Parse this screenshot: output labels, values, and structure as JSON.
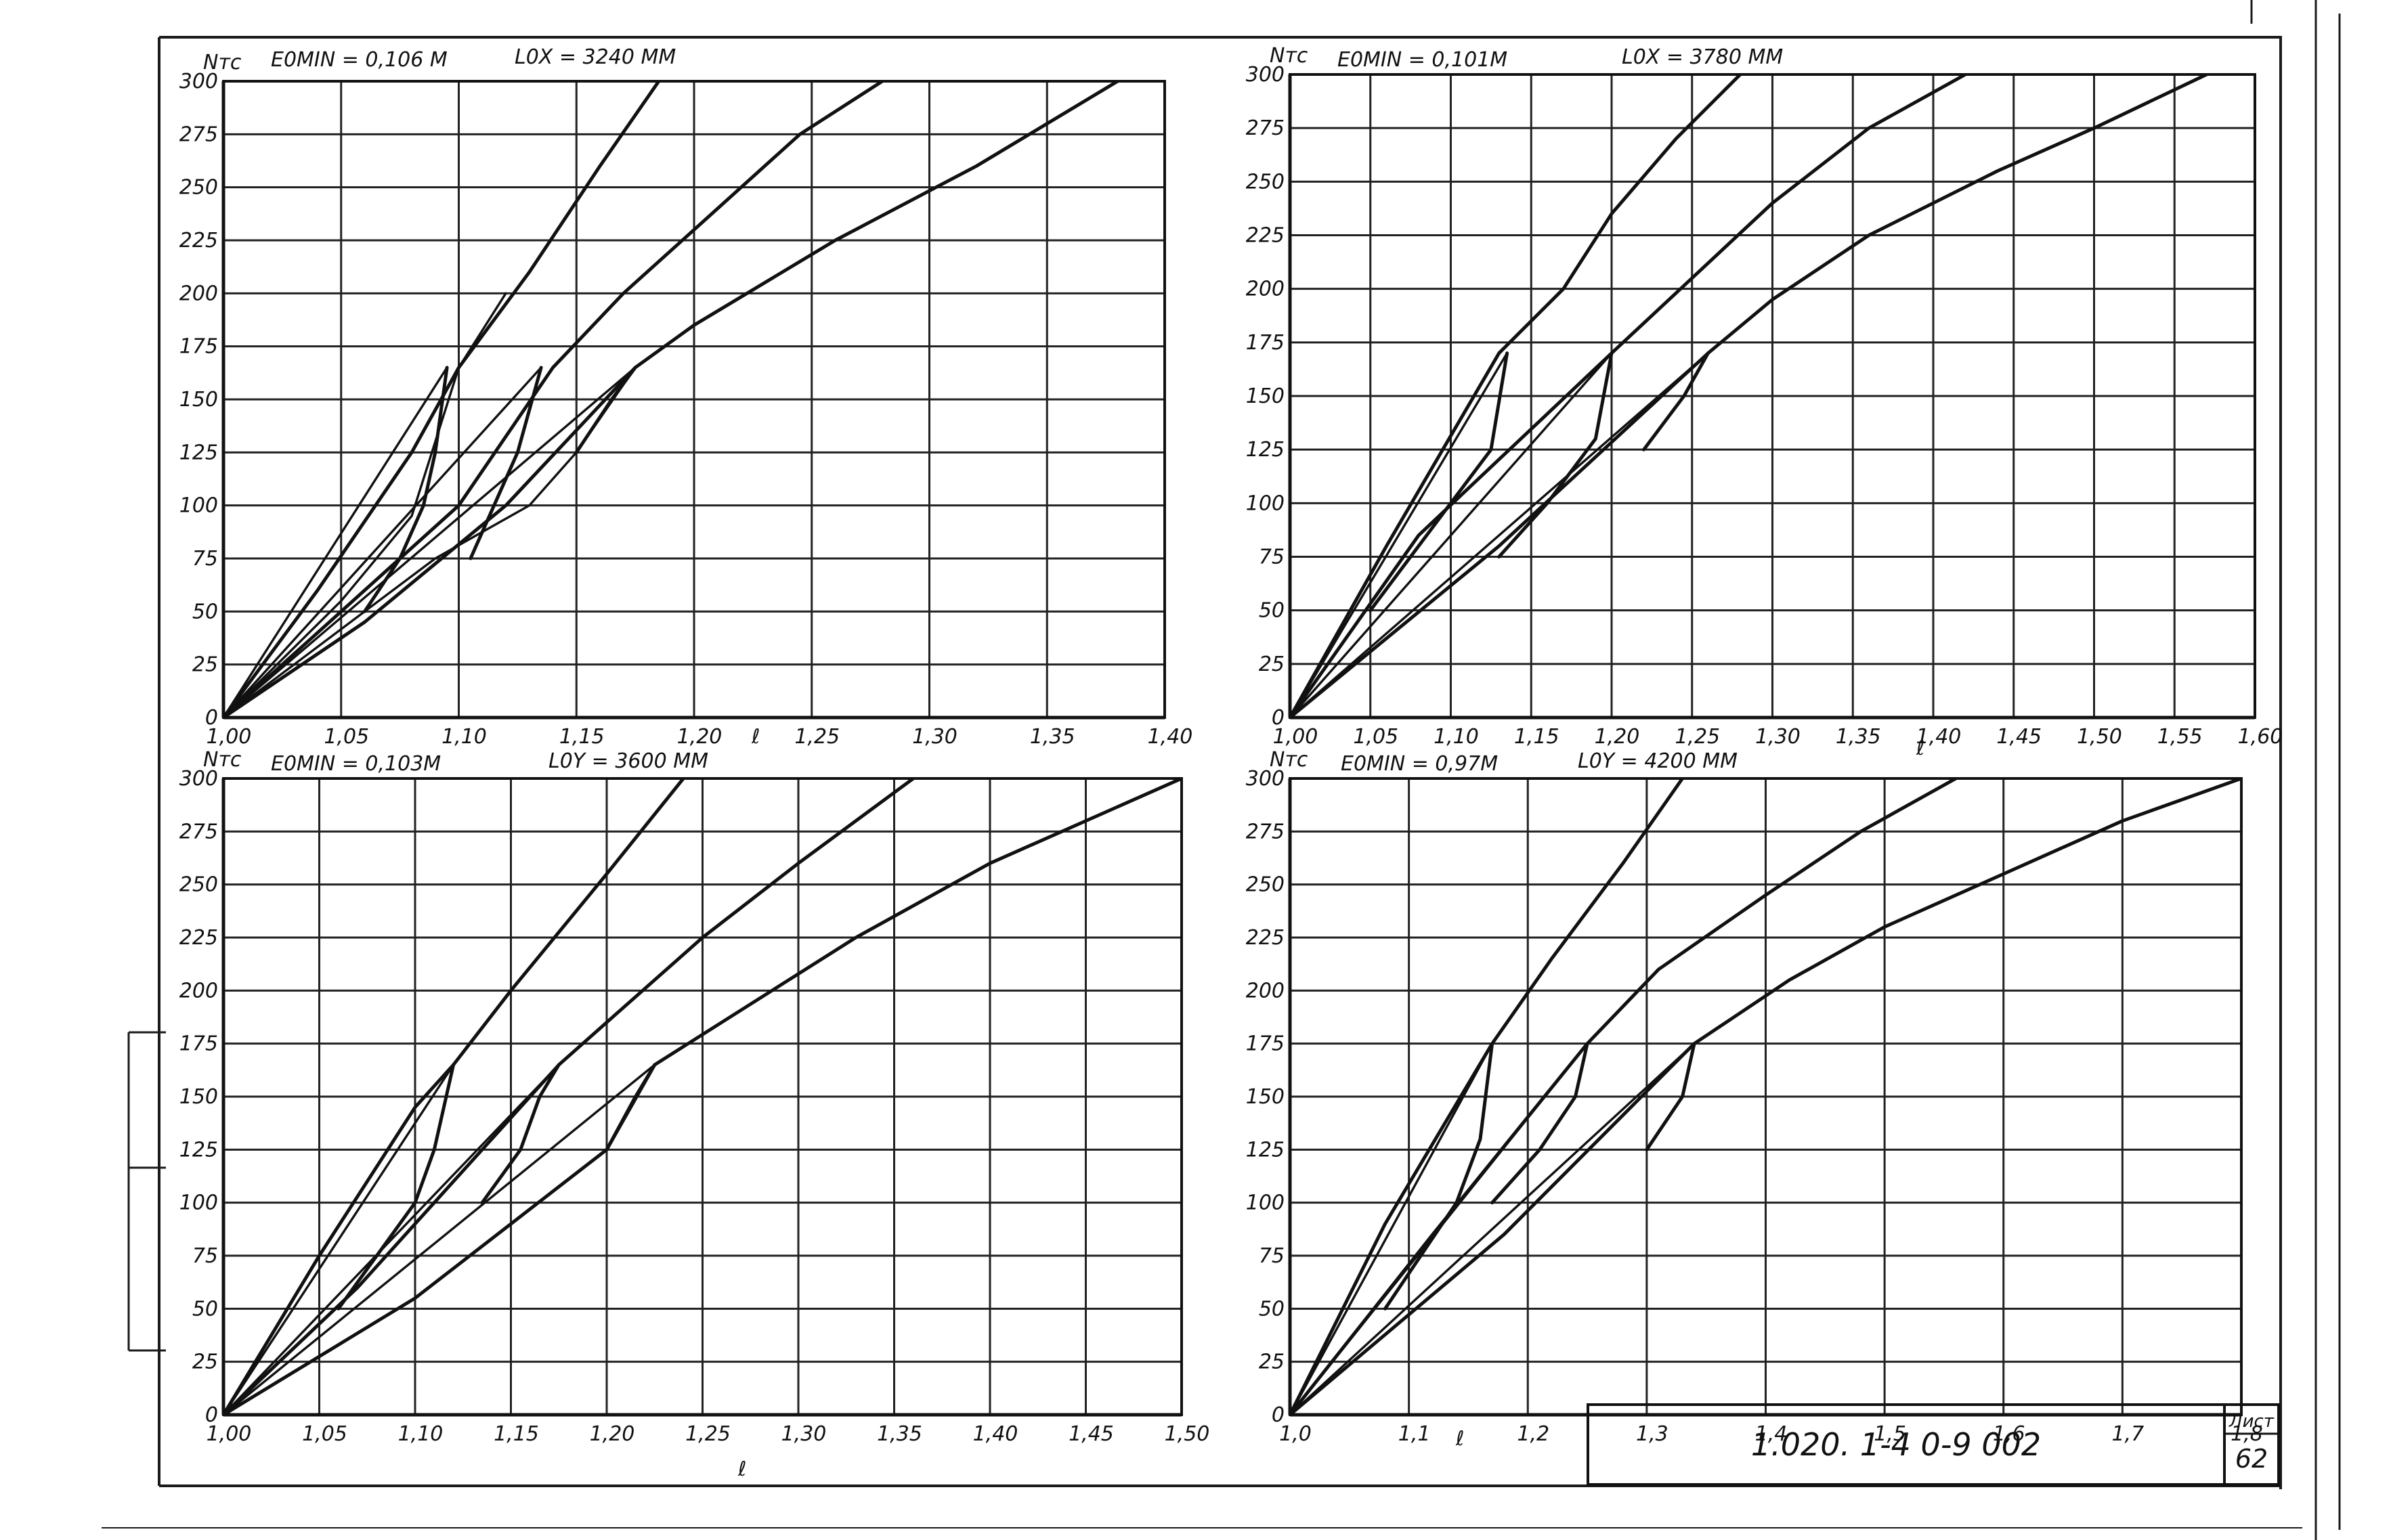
{
  "colors": {
    "ink": "#111111",
    "paper": "#ffffff"
  },
  "stamp": {
    "code": "1.020. 1-4   0-9  002",
    "sheet_label": "Лист",
    "sheet_number": "62"
  },
  "chart_data": [
    {
      "type": "line",
      "y_axis_label": "Nтс",
      "x_axis_label": "ℓ",
      "emin_label": "E0MIN = 0,106 М",
      "length_label": "L0X = 3240 ММ",
      "xlim": [
        1.0,
        1.4
      ],
      "ylim": [
        0,
        300
      ],
      "x_ticks": [
        1.0,
        1.05,
        1.1,
        1.15,
        1.2,
        1.25,
        1.3,
        1.35,
        1.4
      ],
      "x_tick_labels": [
        "1,00",
        "1,05",
        "1,10",
        "1,15",
        "1,20",
        "1,25",
        "1,30",
        "1,35",
        "1,40"
      ],
      "y_ticks": [
        0,
        25,
        50,
        75,
        100,
        125,
        150,
        175,
        200,
        225,
        250,
        275,
        300
      ],
      "y_tick_labels": [
        "0",
        "25",
        "50",
        "75",
        "100",
        "125",
        "150",
        "175",
        "200",
        "225",
        "250",
        "275",
        "300"
      ],
      "grid": true,
      "series": [
        {
          "x": [
            1.0,
            1.04,
            1.08,
            1.1,
            1.13,
            1.16,
            1.185
          ],
          "y": [
            0,
            60,
            125,
            165,
            210,
            260,
            300
          ]
        },
        {
          "x": [
            1.0,
            1.05,
            1.1,
            1.14,
            1.17,
            1.21,
            1.245,
            1.28
          ],
          "y": [
            0,
            50,
            100,
            165,
            200,
            240,
            275,
            300
          ]
        },
        {
          "x": [
            1.0,
            1.06,
            1.12,
            1.175,
            1.2,
            1.26,
            1.32,
            1.38
          ],
          "y": [
            0,
            45,
            100,
            165,
            185,
            225,
            260,
            300
          ]
        },
        {
          "x": [
            1.0,
            1.03,
            1.06,
            1.09,
            1.13,
            1.15,
            1.175
          ],
          "y": [
            0,
            25,
            50,
            75,
            100,
            125,
            165
          ]
        },
        {
          "x": [
            1.0,
            1.05,
            1.08,
            1.1,
            1.12
          ],
          "y": [
            0,
            55,
            95,
            165,
            200
          ]
        }
      ],
      "fan_x": [
        1.095,
        1.09,
        1.085,
        1.075,
        1.06
      ],
      "fan_y": [
        165,
        125,
        100,
        75,
        50
      ],
      "fan2_x": [
        1.135,
        1.125,
        1.115,
        1.105
      ],
      "fan2_y": [
        165,
        125,
        100,
        75
      ],
      "fan3_x": [
        1.175,
        1.165,
        1.15
      ],
      "fan3_y": [
        165,
        150,
        125
      ]
    },
    {
      "type": "line",
      "y_axis_label": "Nтс",
      "x_axis_label": "ℓ",
      "emin_label": "E0MIN = 0,101М",
      "length_label": "L0X = 3780 ММ",
      "xlim": [
        1.0,
        1.6
      ],
      "ylim": [
        0,
        300
      ],
      "x_ticks": [
        1.0,
        1.05,
        1.1,
        1.15,
        1.2,
        1.25,
        1.3,
        1.35,
        1.4,
        1.45,
        1.5,
        1.55,
        1.6
      ],
      "x_tick_labels": [
        "1,00",
        "1,05",
        "1,10",
        "1,15",
        "1,20",
        "1,25",
        "1,30",
        "1,35",
        "1,40",
        "1,45",
        "1,50",
        "1,55",
        "1,60"
      ],
      "y_ticks": [
        0,
        25,
        50,
        75,
        100,
        125,
        150,
        175,
        200,
        225,
        250,
        275,
        300
      ],
      "y_tick_labels": [
        "0",
        "25",
        "50",
        "75",
        "100",
        "125",
        "150",
        "175",
        "200",
        "225",
        "250",
        "275",
        "300"
      ],
      "grid": true,
      "series": [
        {
          "x": [
            1.0,
            1.06,
            1.13,
            1.17,
            1.2,
            1.24,
            1.28
          ],
          "y": [
            0,
            80,
            170,
            200,
            235,
            270,
            300
          ]
        },
        {
          "x": [
            1.0,
            1.08,
            1.2,
            1.25,
            1.3,
            1.36,
            1.42
          ],
          "y": [
            0,
            85,
            170,
            205,
            240,
            275,
            300
          ]
        },
        {
          "x": [
            1.0,
            1.13,
            1.26,
            1.3,
            1.36,
            1.44,
            1.5,
            1.57
          ],
          "y": [
            0,
            80,
            170,
            195,
            225,
            255,
            275,
            300
          ]
        }
      ],
      "fan_x": [
        1.135,
        1.125,
        1.1,
        1.075,
        1.05
      ],
      "fan_y": [
        170,
        125,
        100,
        75,
        50
      ],
      "fan2_x": [
        1.2,
        1.19,
        1.16,
        1.13
      ],
      "fan2_y": [
        170,
        130,
        100,
        75
      ],
      "fan3_x": [
        1.26,
        1.245,
        1.22
      ],
      "fan3_y": [
        170,
        150,
        125
      ]
    },
    {
      "type": "line",
      "y_axis_label": "Nтс",
      "x_axis_label": "ℓ",
      "emin_label": "E0MIN = 0,103М",
      "length_label": "L0Y = 3600 ММ",
      "xlim": [
        1.0,
        1.5
      ],
      "ylim": [
        0,
        300
      ],
      "x_ticks": [
        1.0,
        1.05,
        1.1,
        1.15,
        1.2,
        1.25,
        1.3,
        1.35,
        1.4,
        1.45,
        1.5
      ],
      "x_tick_labels": [
        "1,00",
        "1,05",
        "1,10",
        "1,15",
        "1,20",
        "1,25",
        "1,30",
        "1,35",
        "1,40",
        "1,45",
        "1,50"
      ],
      "y_ticks": [
        0,
        25,
        50,
        75,
        100,
        125,
        150,
        175,
        200,
        225,
        250,
        275,
        300
      ],
      "y_tick_labels": [
        "0",
        "25",
        "50",
        "75",
        "100",
        "125",
        "150",
        "175",
        "200",
        "225",
        "250",
        "275",
        "300"
      ],
      "grid": true,
      "series": [
        {
          "x": [
            1.0,
            1.05,
            1.1,
            1.12,
            1.15,
            1.2,
            1.24
          ],
          "y": [
            0,
            75,
            145,
            165,
            200,
            255,
            300
          ]
        },
        {
          "x": [
            1.0,
            1.07,
            1.13,
            1.175,
            1.2,
            1.25,
            1.3,
            1.36
          ],
          "y": [
            0,
            60,
            120,
            165,
            185,
            225,
            260,
            300
          ]
        },
        {
          "x": [
            1.0,
            1.1,
            1.2,
            1.225,
            1.26,
            1.33,
            1.4,
            1.5
          ],
          "y": [
            0,
            55,
            125,
            165,
            185,
            225,
            260,
            300
          ]
        }
      ],
      "fan_x": [
        1.12,
        1.11,
        1.1,
        1.08,
        1.06
      ],
      "fan_y": [
        165,
        125,
        100,
        75,
        50
      ],
      "fan2_x": [
        1.175,
        1.165,
        1.155,
        1.135
      ],
      "fan2_y": [
        165,
        150,
        125,
        100
      ],
      "fan3_x": [
        1.225,
        1.215,
        1.2
      ],
      "fan3_y": [
        165,
        150,
        125
      ]
    },
    {
      "type": "line",
      "y_axis_label": "Nтс",
      "x_axis_label": "ℓ",
      "emin_label": "E0MIN = 0,97М",
      "length_label": "L0Y = 4200 ММ",
      "xlim": [
        1.0,
        1.8
      ],
      "ylim": [
        0,
        300
      ],
      "x_ticks": [
        1.0,
        1.1,
        1.2,
        1.3,
        1.4,
        1.5,
        1.6,
        1.7,
        1.8
      ],
      "x_tick_labels": [
        "1,0",
        "1,1",
        "1,2",
        "1,3",
        "1,4",
        "1,5",
        "1,6",
        "1,7",
        "1,8"
      ],
      "y_ticks": [
        0,
        25,
        50,
        75,
        100,
        125,
        150,
        175,
        200,
        225,
        250,
        275,
        300
      ],
      "y_tick_labels": [
        "0",
        "25",
        "50",
        "75",
        "100",
        "125",
        "150",
        "175",
        "200",
        "225",
        "250",
        "275",
        "300"
      ],
      "grid": true,
      "series": [
        {
          "x": [
            1.0,
            1.08,
            1.17,
            1.22,
            1.28,
            1.33
          ],
          "y": [
            0,
            90,
            175,
            215,
            260,
            300
          ]
        },
        {
          "x": [
            1.0,
            1.12,
            1.25,
            1.31,
            1.4,
            1.48,
            1.56
          ],
          "y": [
            0,
            85,
            175,
            210,
            245,
            275,
            300
          ]
        },
        {
          "x": [
            1.0,
            1.18,
            1.34,
            1.42,
            1.5,
            1.6,
            1.7,
            1.8
          ],
          "y": [
            0,
            85,
            175,
            205,
            230,
            255,
            280,
            300
          ]
        }
      ],
      "fan_x": [
        1.17,
        1.16,
        1.14,
        1.11,
        1.08
      ],
      "fan_y": [
        175,
        130,
        100,
        75,
        50
      ],
      "fan2_x": [
        1.25,
        1.24,
        1.21,
        1.17
      ],
      "fan2_y": [
        175,
        150,
        125,
        100
      ],
      "fan3_x": [
        1.34,
        1.33,
        1.3
      ],
      "fan3_y": [
        175,
        150,
        125
      ]
    }
  ]
}
